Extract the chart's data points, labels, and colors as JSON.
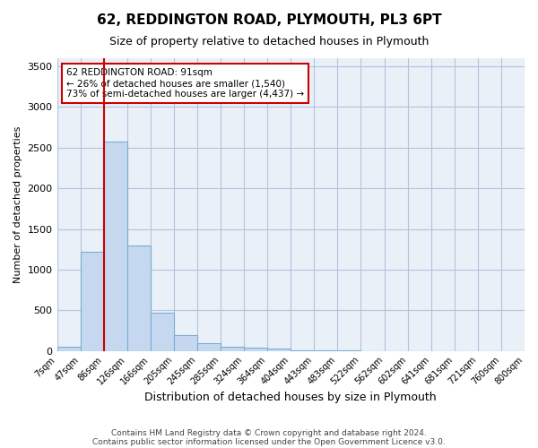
{
  "title": "62, REDDINGTON ROAD, PLYMOUTH, PL3 6PT",
  "subtitle": "Size of property relative to detached houses in Plymouth",
  "xlabel": "Distribution of detached houses by size in Plymouth",
  "ylabel": "Number of detached properties",
  "bar_color": "#c5d8f0",
  "bar_edge_color": "#7aadd4",
  "grid_color": "#b0c4de",
  "background_color": "#eaf0f8",
  "bins": [
    "7sqm",
    "47sqm",
    "86sqm",
    "126sqm",
    "166sqm",
    "205sqm",
    "245sqm",
    "285sqm",
    "324sqm",
    "364sqm",
    "404sqm",
    "443sqm",
    "483sqm",
    "522sqm",
    "562sqm",
    "602sqm",
    "641sqm",
    "681sqm",
    "721sqm",
    "760sqm",
    "800sqm"
  ],
  "bar_heights": [
    50,
    1220,
    2580,
    1300,
    470,
    195,
    100,
    50,
    35,
    25,
    10,
    5,
    5,
    0,
    0,
    0,
    0,
    0,
    0,
    0
  ],
  "ylim": [
    0,
    3600
  ],
  "yticks": [
    0,
    500,
    1000,
    1500,
    2000,
    2500,
    3000,
    3500
  ],
  "annotation_text": "62 REDDINGTON ROAD: 91sqm\n← 26% of detached houses are smaller (1,540)\n73% of semi-detached houses are larger (4,437) →",
  "annotation_box_color": "#ffffff",
  "annotation_border_color": "#cc0000",
  "property_line_color": "#cc0000",
  "property_line_x": 1.5,
  "footer1": "Contains HM Land Registry data © Crown copyright and database right 2024.",
  "footer2": "Contains public sector information licensed under the Open Government Licence v3.0."
}
